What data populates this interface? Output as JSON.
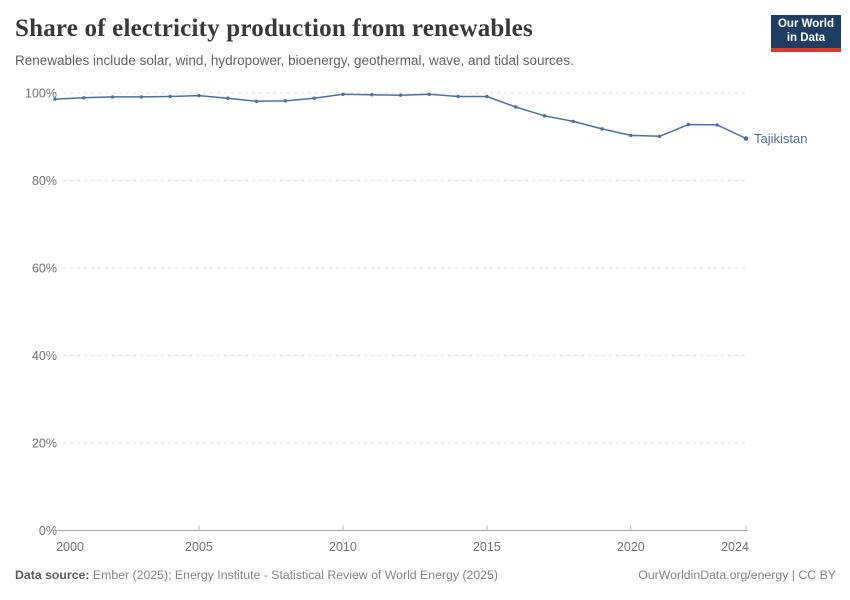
{
  "header": {
    "title": "Share of electricity production from renewables",
    "subtitle": "Renewables include solar, wind, hydropower, bioenergy, geothermal, wave, and tidal sources.",
    "logo": {
      "line1": "Our World",
      "line2": "in Data"
    }
  },
  "footer": {
    "source_label": "Data source:",
    "source_text": " Ember (2025); Energy Institute - Statistical Review of World Energy (2025)",
    "credit": "OurWorldinData.org/energy | CC BY"
  },
  "colors": {
    "accent_line": "#4c6fa5",
    "logo_navy": "#1d3d63",
    "logo_red": "#d93a2d",
    "gridline": "#dedede",
    "axis_line": "#a8a8a8",
    "tick_mark": "#b8b8b8",
    "tick_label": "#737373",
    "title_text": "#383838",
    "subtitle_text": "#616161",
    "footer_text": "#848484"
  },
  "chart_data": {
    "type": "line",
    "title": "Share of electricity production from renewables",
    "xlabel": "",
    "ylabel": "",
    "x": [
      2000,
      2001,
      2002,
      2003,
      2004,
      2005,
      2006,
      2007,
      2008,
      2009,
      2010,
      2011,
      2012,
      2013,
      2014,
      2015,
      2016,
      2017,
      2018,
      2019,
      2020,
      2021,
      2022,
      2023,
      2024
    ],
    "series": [
      {
        "name": "Tajikistan",
        "color": "#4c6fa5",
        "values": [
          98.6,
          98.9,
          99.1,
          99.1,
          99.2,
          99.4,
          98.8,
          98.1,
          98.2,
          98.8,
          99.7,
          99.6,
          99.5,
          99.7,
          99.2,
          99.2,
          96.8,
          94.8,
          93.5,
          91.8,
          90.3,
          90.1,
          92.8,
          92.7,
          89.6
        ]
      }
    ],
    "xlim": [
      2000,
      2024
    ],
    "ylim": [
      0,
      100
    ],
    "x_ticks": [
      2000,
      2005,
      2010,
      2015,
      2020,
      2024
    ],
    "y_ticks": [
      0,
      20,
      40,
      60,
      80,
      100
    ],
    "y_suffix": "%",
    "grid": "horizontal-dashed",
    "legend": "end-of-line-label",
    "entity_label": "Tajikistan"
  }
}
